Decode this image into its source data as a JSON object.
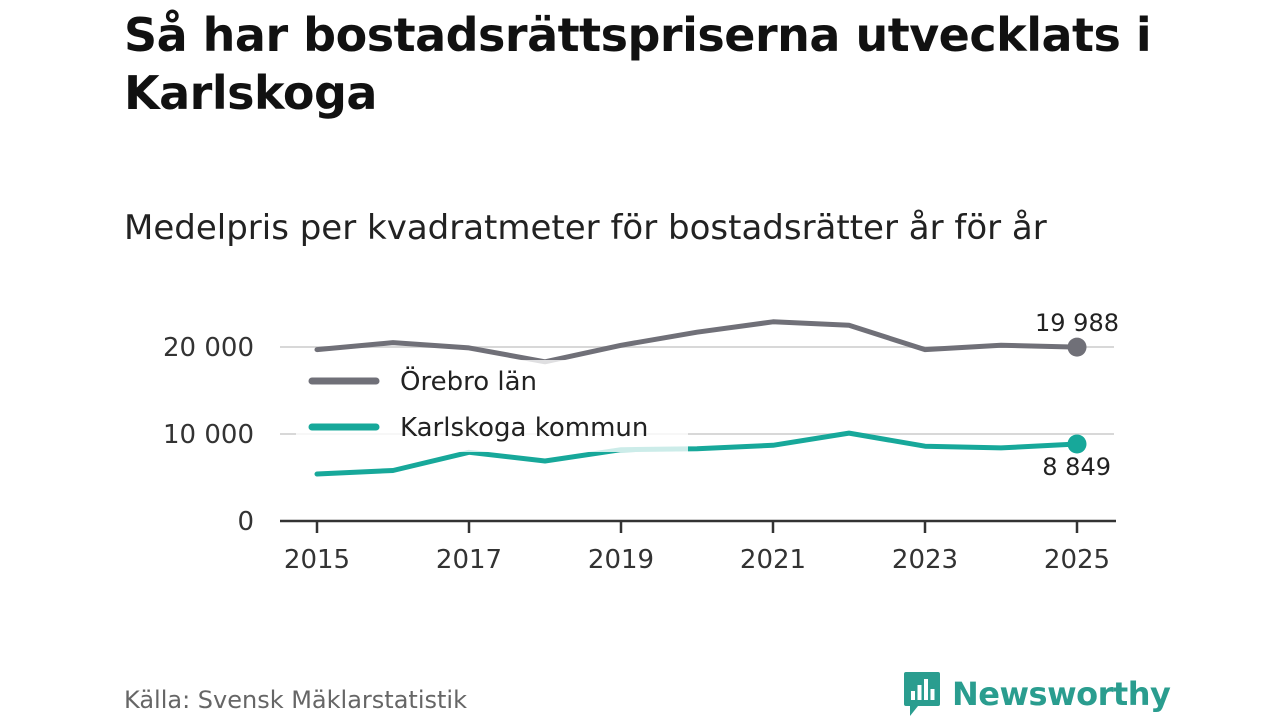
{
  "title": "Så har bostadsrättspriserna utvecklats i Karlskoga",
  "subtitle": "Medelpris per kvadratmeter för bostadsrätter år för år",
  "source": "Källa: Svensk Mäklarstatistik",
  "logo_text": "Newsworthy",
  "colors": {
    "orebro": "#707078",
    "karlskoga": "#17a89a",
    "grid": "#d8d8d8",
    "axis": "#333333",
    "brand": "#2a9d8f"
  },
  "chart_data": {
    "type": "line",
    "title": "Så har bostadsrättspriserna utvecklats i Karlskoga",
    "subtitle": "Medelpris per kvadratmeter för bostadsrätter år för år",
    "x": [
      2015,
      2016,
      2017,
      2018,
      2019,
      2020,
      2021,
      2022,
      2023,
      2024,
      2025
    ],
    "x_tick_labels": [
      "2015",
      "2017",
      "2019",
      "2021",
      "2023",
      "2025"
    ],
    "x_ticks": [
      2015,
      2017,
      2019,
      2021,
      2023,
      2025
    ],
    "y_tick_labels": [
      "0",
      "10 000",
      "20 000"
    ],
    "y_ticks": [
      0,
      10000,
      20000
    ],
    "ylim": [
      0,
      20000
    ],
    "xlim": [
      2015,
      2025
    ],
    "series": [
      {
        "name": "Örebro län",
        "key": "orebro",
        "values": [
          19700,
          20500,
          19900,
          18300,
          20200,
          21700,
          22900,
          22500,
          19700,
          20200,
          19988
        ],
        "end_label": "19 988"
      },
      {
        "name": "Karlskoga kommun",
        "key": "karlskoga",
        "values": [
          5400,
          5800,
          7900,
          6900,
          8200,
          8300,
          8700,
          10100,
          8600,
          8400,
          8849
        ],
        "end_label": "8 849"
      }
    ],
    "legend": [
      "Örebro län",
      "Karlskoga kommun"
    ],
    "legend_position": "upper-left"
  }
}
